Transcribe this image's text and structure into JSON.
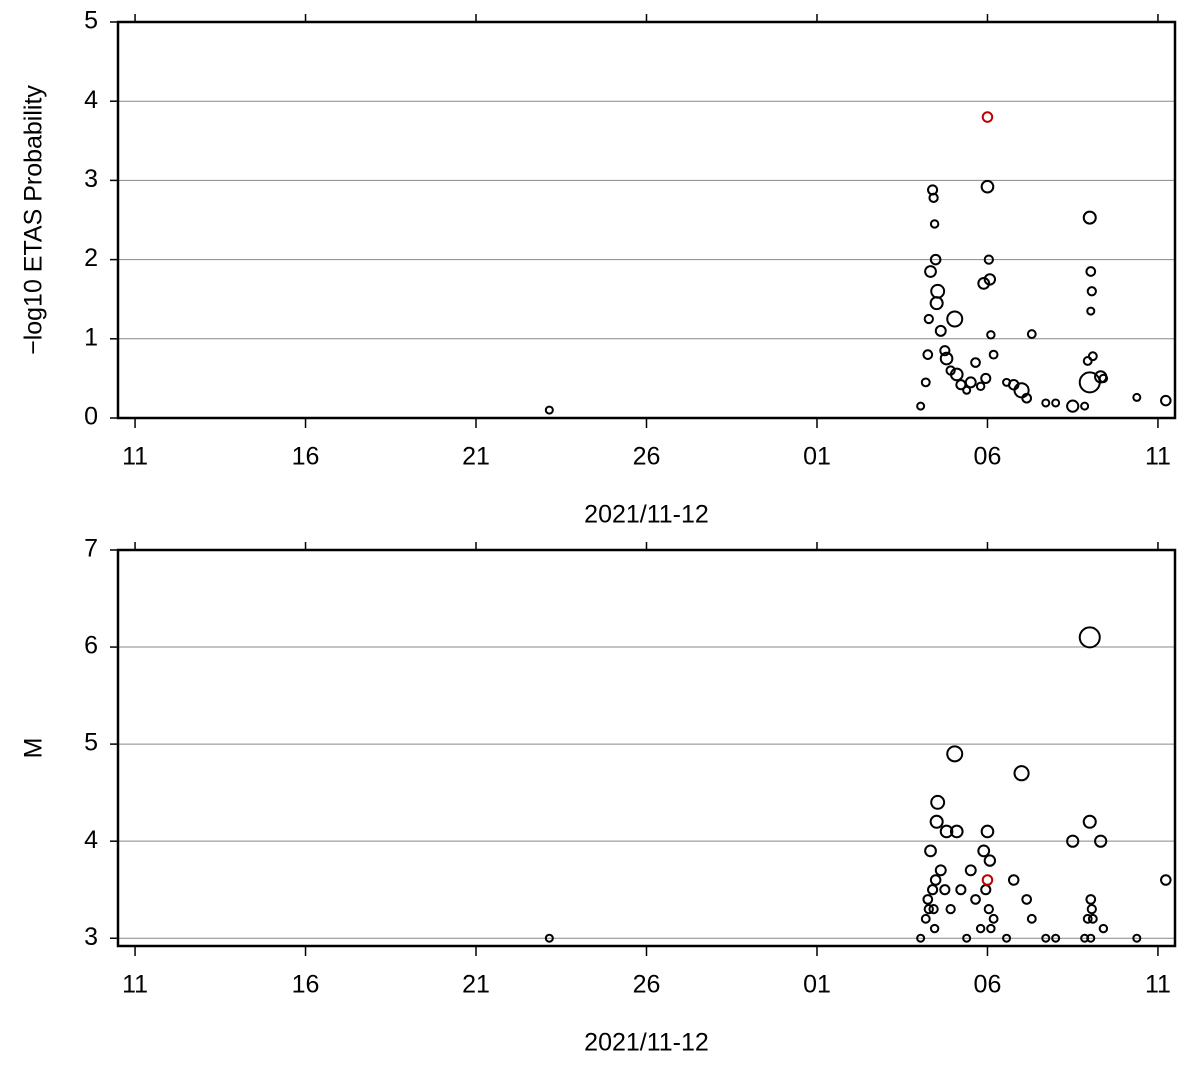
{
  "chart_data": [
    {
      "type": "scatter",
      "ylabel": "−log10 ETAS Probability",
      "xlabel": "2021/11-12",
      "xlim": [
        10.5,
        41.5
      ],
      "xticks": [
        11,
        16,
        21,
        26,
        {
          "value": 31,
          "label": "01"
        },
        {
          "value": 36,
          "label": "06"
        },
        {
          "value": 41,
          "label": "11"
        }
      ],
      "ylim": [
        0,
        5
      ],
      "yticks": [
        0,
        1,
        2,
        3,
        4,
        5
      ],
      "grid": true,
      "series": [
        {
          "color": "#000000",
          "x": [
            23.15,
            34.04,
            34.19,
            34.25,
            34.28,
            34.33,
            34.39,
            34.42,
            34.45,
            34.48,
            34.51,
            34.54,
            34.63,
            34.75,
            34.8,
            34.92,
            35.04,
            35.1,
            35.22,
            35.39,
            35.51,
            35.65,
            35.8,
            35.89,
            35.95,
            36.0,
            36.04,
            36.07,
            36.1,
            36.18,
            36.56,
            36.77,
            37.0,
            37.15,
            37.3,
            37.71,
            38.0,
            38.5,
            38.85,
            38.94,
            39.0,
            39.0,
            39.03,
            39.06,
            39.09,
            39.03,
            39.32,
            39.4,
            40.38,
            41.23
          ],
          "values": [
            0.1,
            0.15,
            0.45,
            0.8,
            1.25,
            1.85,
            2.88,
            2.78,
            2.45,
            2.0,
            1.45,
            1.6,
            1.1,
            0.85,
            0.75,
            0.6,
            1.25,
            0.55,
            0.42,
            0.35,
            0.45,
            0.7,
            0.4,
            1.7,
            0.5,
            2.92,
            2.0,
            1.75,
            1.05,
            0.8,
            0.45,
            0.42,
            0.35,
            0.25,
            1.06,
            0.19,
            0.19,
            0.15,
            0.15,
            0.72,
            2.53,
            0.45,
            1.85,
            1.6,
            0.78,
            1.35,
            0.52,
            0.5,
            0.26,
            0.22
          ],
          "sizes": [
            3.0,
            3.0,
            3.2,
            3.4,
            3.3,
            3.9,
            3.5,
            3.3,
            3.1,
            3.6,
            4.2,
            4.4,
            3.7,
            3.5,
            4.1,
            3.3,
            4.9,
            4.1,
            3.5,
            3.0,
            3.7,
            3.4,
            3.1,
            3.9,
            3.5,
            4.1,
            3.3,
            3.8,
            3.1,
            3.2,
            3.0,
            3.6,
            4.7,
            3.4,
            3.2,
            3.0,
            3.0,
            4.0,
            3.0,
            3.2,
            4.2,
            6.1,
            3.4,
            3.3,
            3.2,
            3.0,
            4.0,
            3.1,
            3.0,
            3.6
          ]
        },
        {
          "color": "#c00000",
          "x": [
            36.0
          ],
          "values": [
            3.8
          ],
          "sizes": [
            3.6
          ]
        }
      ]
    },
    {
      "type": "scatter",
      "ylabel": "M",
      "xlabel": "2021/11-12",
      "xlim": [
        10.5,
        41.5
      ],
      "xticks": [
        11,
        16,
        21,
        26,
        {
          "value": 31,
          "label": "01"
        },
        {
          "value": 36,
          "label": "06"
        },
        {
          "value": 41,
          "label": "11"
        }
      ],
      "ylim": [
        2.92,
        7
      ],
      "yticks": [
        3,
        4,
        5,
        6,
        7
      ],
      "grid": true,
      "series": [
        {
          "color": "#000000",
          "x": [
            23.15,
            34.04,
            34.19,
            34.25,
            34.28,
            34.33,
            34.39,
            34.42,
            34.45,
            34.48,
            34.51,
            34.54,
            34.63,
            34.75,
            34.8,
            34.92,
            35.04,
            35.1,
            35.22,
            35.39,
            35.51,
            35.65,
            35.8,
            35.89,
            35.95,
            36.0,
            36.04,
            36.07,
            36.1,
            36.18,
            36.56,
            36.77,
            37.0,
            37.15,
            37.3,
            37.71,
            38.0,
            38.5,
            38.85,
            38.94,
            39.0,
            39.0,
            39.03,
            39.06,
            39.09,
            39.03,
            39.32,
            39.4,
            40.38,
            41.23
          ],
          "values": [
            3.0,
            3.0,
            3.2,
            3.4,
            3.3,
            3.9,
            3.5,
            3.3,
            3.1,
            3.6,
            4.2,
            4.4,
            3.7,
            3.5,
            4.1,
            3.3,
            4.9,
            4.1,
            3.5,
            3.0,
            3.7,
            3.4,
            3.1,
            3.9,
            3.5,
            4.1,
            3.3,
            3.8,
            3.1,
            3.2,
            3.0,
            3.6,
            4.7,
            3.4,
            3.2,
            3.0,
            3.0,
            4.0,
            3.0,
            3.2,
            4.2,
            6.1,
            3.4,
            3.3,
            3.2,
            3.0,
            4.0,
            3.1,
            3.0,
            3.6
          ]
        },
        {
          "color": "#c00000",
          "x": [
            36.0
          ],
          "values": [
            3.6
          ]
        }
      ]
    }
  ]
}
